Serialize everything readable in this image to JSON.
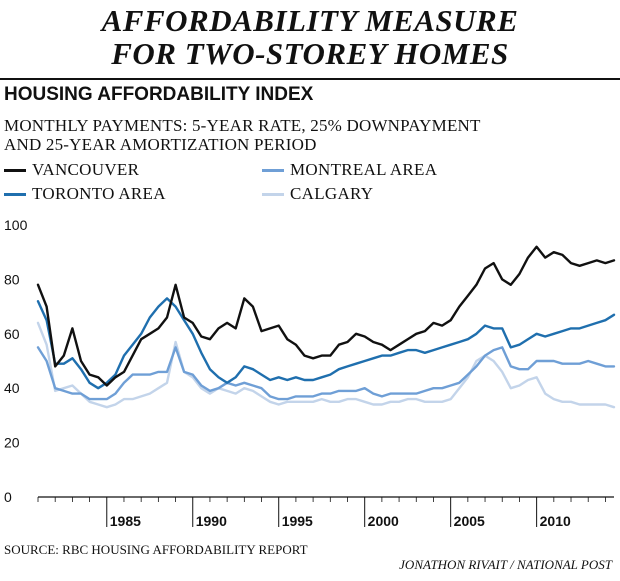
{
  "header": {
    "title_line1": "AFFORDABILITY MEASURE",
    "title_line2": "FOR TWO-STOREY HOMES",
    "subhead": "HOUSING AFFORDABILITY INDEX",
    "note_line1": "MONTHLY PAYMENTS: 5-YEAR RATE, 25% DOWNPAYMENT",
    "note_line2": "AND 25-YEAR AMORTIZATION PERIOD"
  },
  "legend": [
    {
      "label": "VANCOUVER",
      "color": "#111111"
    },
    {
      "label": "TORONTO AREA",
      "color": "#1f6fae"
    },
    {
      "label": "MONTREAL AREA",
      "color": "#6f9fd6"
    },
    {
      "label": "CALGARY",
      "color": "#c3d4ea"
    }
  ],
  "footer": {
    "source": "SOURCE: RBC HOUSING AFFORDABILITY REPORT",
    "credit": "JONATHON RIVAIT / NATIONAL POST"
  },
  "chart_data": {
    "type": "line",
    "title": "HOUSING AFFORDABILITY INDEX",
    "xlabel": "",
    "ylabel": "",
    "xlim": [
      1981,
      2014.5
    ],
    "ylim": [
      0,
      100
    ],
    "y_ticks": [
      "0",
      "20",
      "40",
      "60",
      "80",
      "100"
    ],
    "x_ticks": [
      "1985",
      "1990",
      "1995",
      "2000",
      "2005",
      "2010"
    ],
    "grid": false,
    "x": [
      1981,
      1981.5,
      1982,
      1982.5,
      1983,
      1983.5,
      1984,
      1984.5,
      1985,
      1985.5,
      1986,
      1986.5,
      1987,
      1987.5,
      1988,
      1988.5,
      1989,
      1989.5,
      1990,
      1990.5,
      1991,
      1991.5,
      1992,
      1992.5,
      1993,
      1993.5,
      1994,
      1994.5,
      1995,
      1995.5,
      1996,
      1996.5,
      1997,
      1997.5,
      1998,
      1998.5,
      1999,
      1999.5,
      2000,
      2000.5,
      2001,
      2001.5,
      2002,
      2002.5,
      2003,
      2003.5,
      2004,
      2004.5,
      2005,
      2005.5,
      2006,
      2006.5,
      2007,
      2007.5,
      2008,
      2008.5,
      2009,
      2009.5,
      2010,
      2010.5,
      2011,
      2011.5,
      2012,
      2012.5,
      2013,
      2013.5,
      2014,
      2014.5
    ],
    "series": [
      {
        "name": "VANCOUVER",
        "color": "#111111",
        "values": [
          78,
          70,
          48,
          52,
          62,
          50,
          45,
          44,
          41,
          44,
          46,
          52,
          58,
          60,
          62,
          66,
          78,
          66,
          64,
          59,
          58,
          62,
          64,
          62,
          73,
          70,
          61,
          62,
          63,
          58,
          56,
          52,
          51,
          52,
          52,
          56,
          57,
          60,
          59,
          57,
          56,
          54,
          56,
          58,
          60,
          61,
          64,
          63,
          65,
          70,
          74,
          78,
          84,
          86,
          80,
          78,
          82,
          88,
          92,
          88,
          90,
          89,
          86,
          85,
          86,
          87,
          86,
          87
        ]
      },
      {
        "name": "TORONTO AREA",
        "color": "#1f6fae",
        "values": [
          72,
          65,
          49,
          49,
          51,
          47,
          42,
          40,
          42,
          45,
          52,
          56,
          60,
          66,
          70,
          73,
          70,
          65,
          60,
          53,
          47,
          44,
          42,
          44,
          48,
          47,
          45,
          43,
          44,
          43,
          44,
          43,
          43,
          44,
          45,
          47,
          48,
          49,
          50,
          51,
          52,
          52,
          53,
          54,
          54,
          53,
          54,
          55,
          56,
          57,
          58,
          60,
          63,
          62,
          62,
          55,
          56,
          58,
          60,
          59,
          60,
          61,
          62,
          62,
          63,
          64,
          65,
          67
        ]
      },
      {
        "name": "MONTREAL AREA",
        "color": "#6f9fd6",
        "values": [
          55,
          50,
          40,
          39,
          38,
          38,
          36,
          36,
          36,
          38,
          42,
          45,
          45,
          45,
          46,
          46,
          55,
          46,
          45,
          41,
          39,
          40,
          42,
          41,
          42,
          41,
          40,
          37,
          36,
          36,
          37,
          37,
          37,
          38,
          38,
          39,
          39,
          39,
          40,
          38,
          37,
          38,
          38,
          38,
          38,
          39,
          40,
          40,
          41,
          42,
          45,
          48,
          52,
          54,
          55,
          48,
          47,
          47,
          50,
          50,
          50,
          49,
          49,
          49,
          50,
          49,
          48,
          48
        ]
      },
      {
        "name": "CALGARY",
        "color": "#c3d4ea",
        "values": [
          64,
          56,
          39,
          40,
          41,
          38,
          35,
          34,
          33,
          34,
          36,
          36,
          37,
          38,
          40,
          42,
          57,
          46,
          44,
          40,
          38,
          40,
          39,
          38,
          40,
          39,
          37,
          35,
          34,
          35,
          35,
          35,
          35,
          36,
          35,
          35,
          36,
          36,
          35,
          34,
          34,
          35,
          35,
          36,
          36,
          35,
          35,
          35,
          36,
          40,
          44,
          50,
          52,
          50,
          46,
          40,
          41,
          43,
          44,
          38,
          36,
          35,
          35,
          34,
          34,
          34,
          34,
          33
        ]
      }
    ]
  }
}
